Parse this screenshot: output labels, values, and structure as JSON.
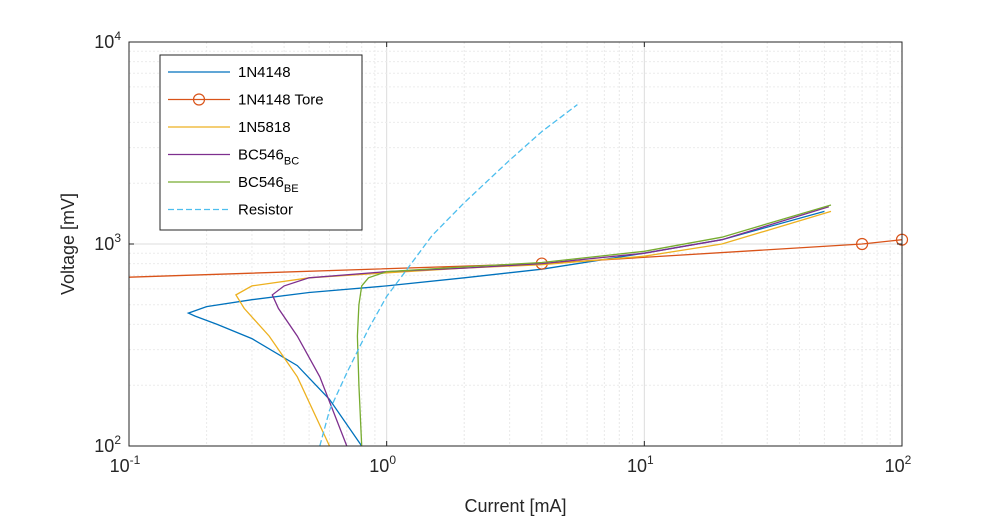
{
  "chart_data": {
    "type": "line",
    "x_scale": "log",
    "y_scale": "log",
    "xlabel": "Current [mA]",
    "ylabel": "Voltage [mV]",
    "xlim": [
      0.1,
      100
    ],
    "ylim": [
      100,
      10000
    ],
    "x_ticks": [
      {
        "base": "10",
        "exp": "-1"
      },
      {
        "base": "10",
        "exp": "0"
      },
      {
        "base": "10",
        "exp": "1"
      },
      {
        "base": "10",
        "exp": "2"
      }
    ],
    "y_ticks": [
      {
        "base": "10",
        "exp": "2"
      },
      {
        "base": "10",
        "exp": "3"
      },
      {
        "base": "10",
        "exp": "4"
      }
    ],
    "grid": true,
    "minor_grid": true,
    "legend_position": "top-left",
    "series": [
      {
        "name": "1N4148",
        "name_sub": "",
        "color": "#0072BD",
        "dash": "solid",
        "marker": "none",
        "x": [
          0.8,
          0.6,
          0.45,
          0.3,
          0.22,
          0.18,
          0.17,
          0.2,
          0.3,
          0.5,
          1,
          2,
          4,
          10,
          20,
          50
        ],
        "y": [
          100,
          170,
          250,
          340,
          400,
          440,
          455,
          490,
          530,
          575,
          620,
          680,
          750,
          900,
          1050,
          1450
        ]
      },
      {
        "name": "1N4148 Tore",
        "name_sub": "",
        "color": "#D95319",
        "dash": "solid",
        "marker": "circle",
        "x": [
          0.1,
          4,
          70,
          100
        ],
        "y": [
          685,
          800,
          1000,
          1050
        ]
      },
      {
        "name": "1N5818",
        "name_sub": "",
        "color": "#EDB120",
        "dash": "solid",
        "marker": "none",
        "x": [
          0.6,
          0.45,
          0.35,
          0.28,
          0.26,
          0.3,
          0.5,
          1,
          2,
          4,
          10,
          20,
          53
        ],
        "y": [
          100,
          220,
          350,
          480,
          560,
          620,
          680,
          720,
          760,
          790,
          870,
          1000,
          1450
        ]
      },
      {
        "name": "BC546",
        "name_sub": "BC",
        "color": "#7E2F8E",
        "dash": "solid",
        "marker": "none",
        "x": [
          0.7,
          0.55,
          0.45,
          0.38,
          0.36,
          0.4,
          0.5,
          1,
          2,
          4,
          10,
          20,
          52
        ],
        "y": [
          100,
          220,
          350,
          480,
          560,
          620,
          680,
          730,
          760,
          800,
          900,
          1050,
          1530
        ]
      },
      {
        "name": "BC546",
        "name_sub": "BE",
        "color": "#77AC30",
        "dash": "solid",
        "marker": "none",
        "x": [
          0.8,
          0.78,
          0.77,
          0.78,
          0.8,
          0.85,
          1,
          2,
          4,
          10,
          20,
          53
        ],
        "y": [
          100,
          200,
          350,
          500,
          620,
          680,
          730,
          770,
          810,
          920,
          1080,
          1560
        ]
      },
      {
        "name": "Resistor",
        "name_sub": "",
        "color": "#4DBEEE",
        "dash": "dashed",
        "marker": "none",
        "x": [
          0.55,
          0.6,
          0.7,
          0.85,
          1,
          1.2,
          1.5,
          2,
          3,
          4,
          5.5
        ],
        "y": [
          100,
          150,
          230,
          380,
          550,
          750,
          1100,
          1600,
          2600,
          3600,
          4900
        ]
      }
    ]
  }
}
